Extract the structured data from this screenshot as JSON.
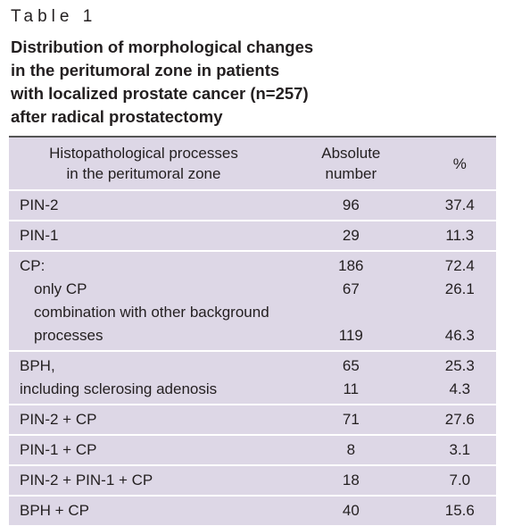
{
  "label": "Table 1",
  "caption": [
    "Distribution of morphological changes",
    "in the peritumoral zone in patients",
    "with localized prostate cancer (n=257)",
    "after radical prostatectomy"
  ],
  "table": {
    "header": [
      [
        "Histopathological processes",
        "in the peritumoral zone"
      ],
      [
        "Absolute",
        "number"
      ],
      [
        "%"
      ]
    ],
    "groups": [
      [
        [
          "PIN-2",
          "96",
          "37.4"
        ]
      ],
      [
        [
          "PIN-1",
          "29",
          "11.3"
        ]
      ],
      [
        [
          "CP:",
          "186",
          "72.4"
        ],
        [
          "only CP",
          "67",
          "26.1"
        ],
        [
          "combination with other background processes",
          "119",
          "46.3"
        ]
      ],
      [
        [
          "BPH,",
          "65",
          "25.3"
        ],
        [
          "including sclerosing adenosis",
          "11",
          "4.3"
        ]
      ],
      [
        [
          "PIN-2 + CP",
          "71",
          "27.6"
        ]
      ],
      [
        [
          "PIN-1 + CP",
          "8",
          "3.1"
        ]
      ],
      [
        [
          "PIN-2 + PIN-1 + CP",
          "18",
          "7.0"
        ]
      ],
      [
        [
          "BPH + CP",
          "40",
          "15.6"
        ]
      ]
    ]
  }
}
